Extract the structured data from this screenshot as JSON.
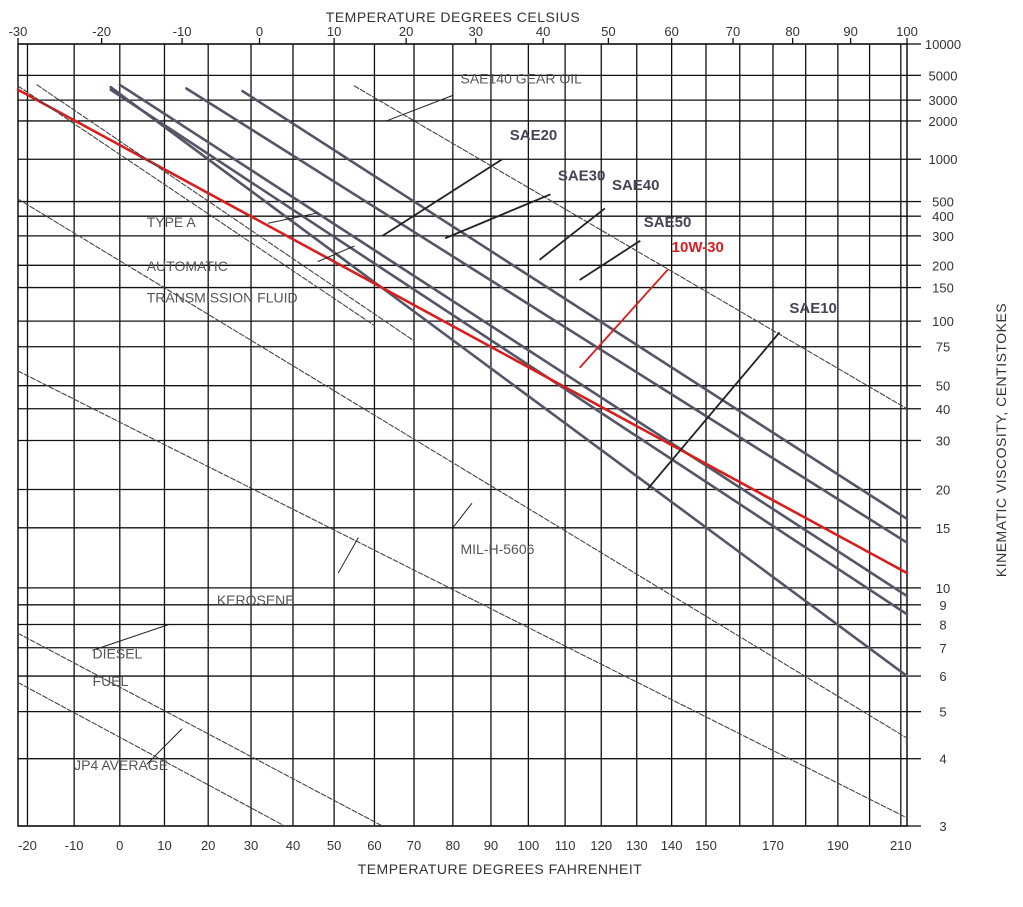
{
  "chart_data": {
    "type": "line",
    "title": "",
    "x_top_label": "TEMPERATURE  DEGREES CELSIUS",
    "x_bottom_label": "TEMPERATURE  DEGREES  FAHRENHEIT",
    "y_label": "KINEMATIC VISCOSITY, CENTISTOKES",
    "y_scale": "log-log (ASTM viscosity-temperature chart)",
    "grid": true,
    "xlim_fahrenheit": [
      -22,
      212
    ],
    "xlim_celsius": [
      -30,
      100
    ],
    "ylim": [
      3,
      10000
    ],
    "celsius_ticks": [
      "-30",
      "-20",
      "-10",
      "0",
      "10",
      "20",
      "30",
      "40",
      "50",
      "60",
      "70",
      "80",
      "90",
      "100"
    ],
    "fahrenheit_ticks": [
      "-20",
      "-10",
      "0",
      "10",
      "20",
      "30",
      "40",
      "50",
      "60",
      "70",
      "80",
      "90",
      "100",
      "110",
      "120",
      "130",
      "140",
      "150",
      "170",
      "190",
      "210"
    ],
    "viscosity_ticks": [
      "10000",
      "5000",
      "3000",
      "2000",
      "1000",
      "500",
      "400",
      "300",
      "200",
      "150",
      "100",
      "75",
      "50",
      "40",
      "30",
      "20",
      "15",
      "10",
      "9",
      "8",
      "7",
      "6",
      "5",
      "4",
      "3"
    ],
    "series": [
      {
        "name": "SAE140 GEAR OIL",
        "color": "#444444",
        "style": "thin",
        "points": [
          [
            55,
            4000
          ],
          [
            212,
            40
          ]
        ]
      },
      {
        "name": "SAE50",
        "color": "#555566",
        "style": "thick",
        "points": [
          [
            28,
            3600
          ],
          [
            212,
            16
          ]
        ]
      },
      {
        "name": "SAE40",
        "color": "#555566",
        "style": "thick",
        "points": [
          [
            15,
            3800
          ],
          [
            212,
            13.5
          ]
        ]
      },
      {
        "name": "SAE30",
        "color": "#555566",
        "style": "thick",
        "points": [
          [
            0,
            4100
          ],
          [
            212,
            9.5
          ]
        ]
      },
      {
        "name": "SAE20",
        "color": "#555566",
        "style": "thick",
        "points": [
          [
            -2,
            3700
          ],
          [
            212,
            8.5
          ]
        ]
      },
      {
        "name": "SAE10",
        "color": "#555566",
        "style": "thick",
        "points": [
          [
            -2,
            3900
          ],
          [
            212,
            6
          ]
        ]
      },
      {
        "name": "10W-30",
        "color": "#d62020",
        "style": "thick",
        "points": [
          [
            -22,
            3700
          ],
          [
            212,
            11
          ]
        ]
      },
      {
        "name": "TYPE A",
        "color": "#444444",
        "style": "thin",
        "points": [
          [
            -22,
            4000
          ],
          [
            60,
            95
          ]
        ]
      },
      {
        "name": "AUTOMATIC TRANSMISSION FLUID",
        "color": "#444444",
        "style": "thin",
        "points": [
          [
            -18,
            4100
          ],
          [
            70,
            80
          ]
        ]
      },
      {
        "name": "MIL-H-5606",
        "color": "#444444",
        "style": "thin",
        "points": [
          [
            -22,
            520
          ],
          [
            212,
            4.4
          ]
        ]
      },
      {
        "name": "KEROSENE",
        "color": "#444444",
        "style": "thin",
        "points": [
          [
            -22,
            58
          ],
          [
            212,
            3.1
          ]
        ]
      },
      {
        "name": "DIESEL FUEL",
        "color": "#444444",
        "style": "thin",
        "points": [
          [
            -22,
            7.6
          ],
          [
            62,
            3
          ]
        ]
      },
      {
        "name": "JP4 AVERAGE",
        "color": "#444444",
        "style": "thin",
        "points": [
          [
            -22,
            5.8
          ],
          [
            38,
            3
          ]
        ]
      }
    ],
    "annotations": [
      {
        "text": "SAE140 GEAR OIL",
        "kind": "printed"
      },
      {
        "text": "SAE20",
        "kind": "handwritten"
      },
      {
        "text": "SAE30",
        "kind": "handwritten"
      },
      {
        "text": "SAE40",
        "kind": "handwritten"
      },
      {
        "text": "SAE50",
        "kind": "handwritten"
      },
      {
        "text": "10W-30",
        "kind": "handwritten",
        "color": "#d62020"
      },
      {
        "text": "SAE10",
        "kind": "handwritten"
      },
      {
        "text": "TYPE A",
        "kind": "printed"
      },
      {
        "text": "AUTOMATIC",
        "kind": "printed"
      },
      {
        "text": "TRANSMISSION FLUID",
        "kind": "printed"
      },
      {
        "text": "MIL-H-5606",
        "kind": "printed"
      },
      {
        "text": "KEROSENE",
        "kind": "printed"
      },
      {
        "text": "DIESEL",
        "kind": "printed"
      },
      {
        "text": "FUEL",
        "kind": "printed"
      },
      {
        "text": "JP4 AVERAGE",
        "kind": "printed"
      }
    ]
  }
}
